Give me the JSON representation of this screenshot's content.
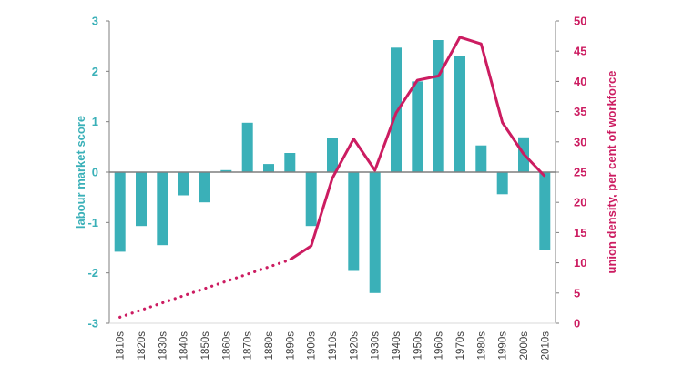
{
  "chart_data": {
    "type": "bar",
    "categories": [
      "1810s",
      "1820s",
      "1830s",
      "1840s",
      "1850s",
      "1860s",
      "1870s",
      "1880s",
      "1890s",
      "1900s",
      "1910s",
      "1920s",
      "1930s",
      "1940s",
      "1950s",
      "1960s",
      "1970s",
      "1980s",
      "1990s",
      "2000s",
      "2010s"
    ],
    "ylabel": "labour market score",
    "ylim": [
      -3,
      3
    ],
    "yticks": [
      3,
      2,
      1,
      0,
      -1,
      -2,
      -3
    ],
    "y2label": "union density, per cent of workforce",
    "y2lim": [
      0,
      50
    ],
    "y2ticks": [
      50,
      45,
      40,
      35,
      30,
      25,
      20,
      15,
      10,
      5,
      0
    ],
    "series": [
      {
        "type": "bar",
        "axis": "left",
        "values": [
          -1.58,
          -1.07,
          -1.45,
          -0.46,
          -0.6,
          0.04,
          0.98,
          0.16,
          0.38,
          -1.07,
          0.67,
          -1.96,
          -2.4,
          2.47,
          1.8,
          2.62,
          2.3,
          0.53,
          -0.44,
          0.69,
          -1.54
        ]
      },
      {
        "type": "line",
        "axis": "right",
        "values": [
          1,
          null,
          null,
          null,
          null,
          null,
          null,
          null,
          10.5,
          12.8,
          24,
          30.5,
          25.3,
          34.8,
          40.2,
          40.9,
          47.3,
          46.2,
          33.2,
          28,
          24.3
        ]
      }
    ],
    "dotted_segment": {
      "from_index": 0,
      "to_index": 8,
      "values": [
        1,
        10.5
      ]
    },
    "grid": false,
    "legend": "none",
    "colors": {
      "bars": "#3ab0b8",
      "line": "#cc1c61",
      "axis": "#7f7f7f",
      "tick_text": "#404040"
    }
  }
}
